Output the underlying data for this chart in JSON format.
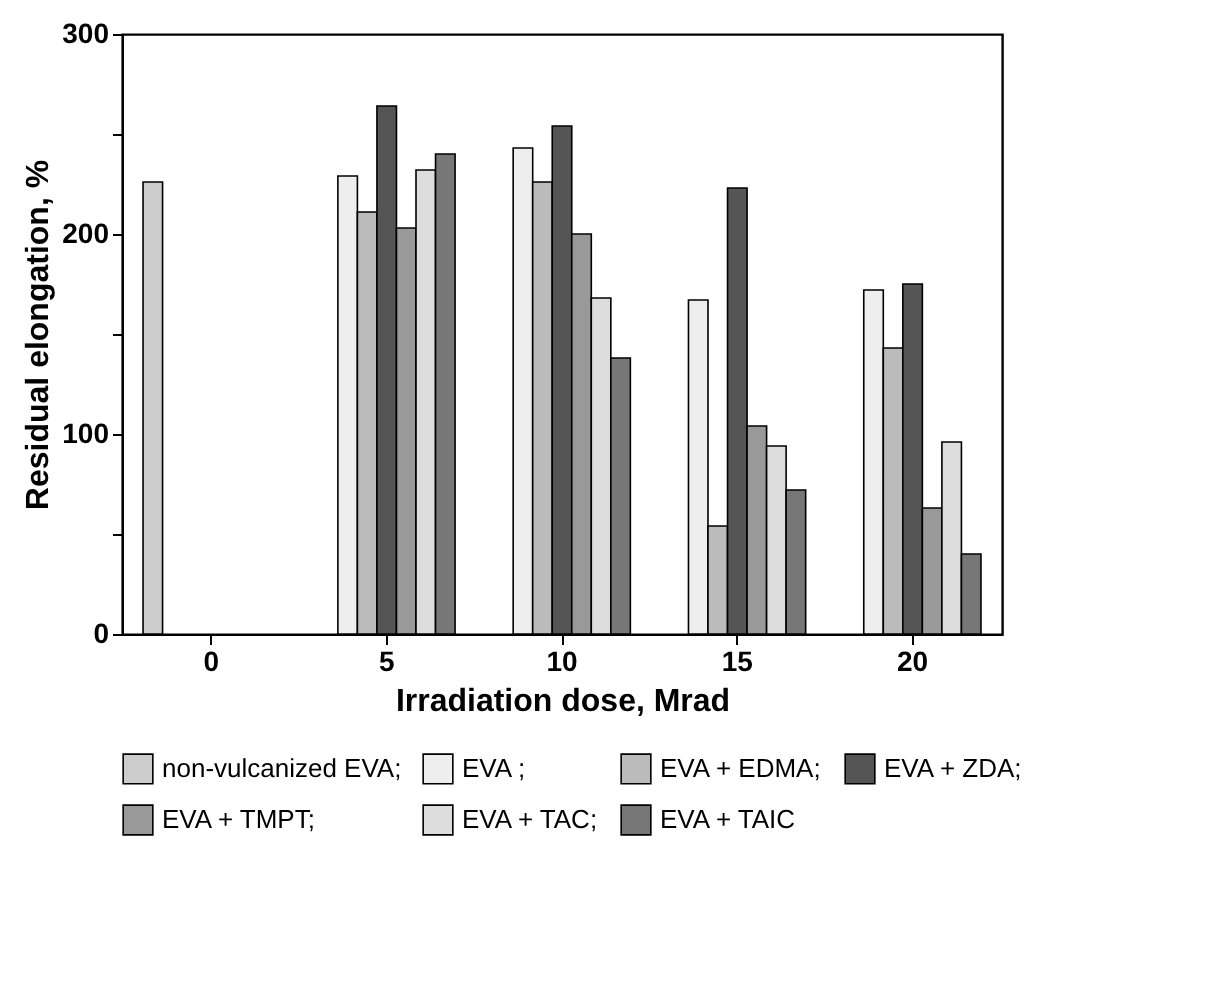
{
  "chart_data": {
    "type": "bar",
    "xlabel": "Irradiation dose, Mrad",
    "ylabel": "Residual elongation, %",
    "categories": [
      "0",
      "5",
      "10",
      "15",
      "20"
    ],
    "series": [
      {
        "name": "non-vulcanized EVA;",
        "color": "#cccccc",
        "values": [
          226,
          null,
          null,
          null,
          null
        ]
      },
      {
        "name": "EVA ;",
        "color": "#eeeeee",
        "values": [
          null,
          229,
          243,
          167,
          172
        ]
      },
      {
        "name": "EVA + EDMA;",
        "color": "#bbbbbb",
        "values": [
          null,
          211,
          226,
          54,
          143
        ]
      },
      {
        "name": "EVA + ZDA;",
        "color": "#555555",
        "values": [
          null,
          264,
          254,
          223,
          175
        ]
      },
      {
        "name": "EVA + TMPT;",
        "color": "#999999",
        "values": [
          null,
          203,
          200,
          104,
          63
        ]
      },
      {
        "name": "EVA + TAC;",
        "color": "#dddddd",
        "values": [
          null,
          232,
          168,
          94,
          96
        ]
      },
      {
        "name": "EVA + TAIC",
        "color": "#777777",
        "values": [
          null,
          240,
          138,
          72,
          40
        ]
      }
    ],
    "ylim": [
      0,
      300
    ],
    "yticks": [
      0,
      {
        "value": 50,
        "label": null
      },
      100,
      {
        "value": 150,
        "label": null
      },
      200,
      {
        "value": 250,
        "label": null
      },
      300
    ],
    "grid": false,
    "legend": "bottom"
  }
}
